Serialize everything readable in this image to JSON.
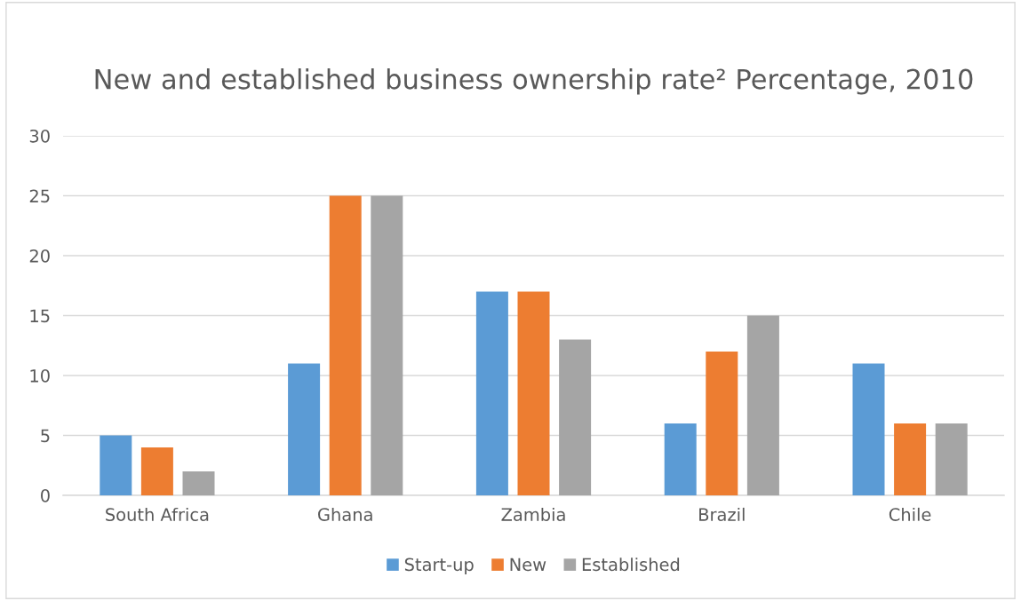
{
  "chart_data": {
    "type": "bar",
    "title": "New and established business ownership rate² Percentage, 2010",
    "categories": [
      "South Africa",
      "Ghana",
      "Zambia",
      "Brazil",
      "Chile"
    ],
    "series": [
      {
        "name": "Start-up",
        "color": "#5b9bd5",
        "values": [
          5,
          11,
          17,
          6,
          11
        ]
      },
      {
        "name": "New",
        "color": "#ed7d31",
        "values": [
          4,
          25,
          17,
          12,
          6
        ]
      },
      {
        "name": "Established",
        "color": "#a5a5a5",
        "values": [
          2,
          25,
          13,
          15,
          6
        ]
      }
    ],
    "ylim": [
      0,
      30
    ],
    "yticks": [
      0,
      5,
      10,
      15,
      20,
      25,
      30
    ],
    "grid": "y",
    "legend": "bottom"
  }
}
